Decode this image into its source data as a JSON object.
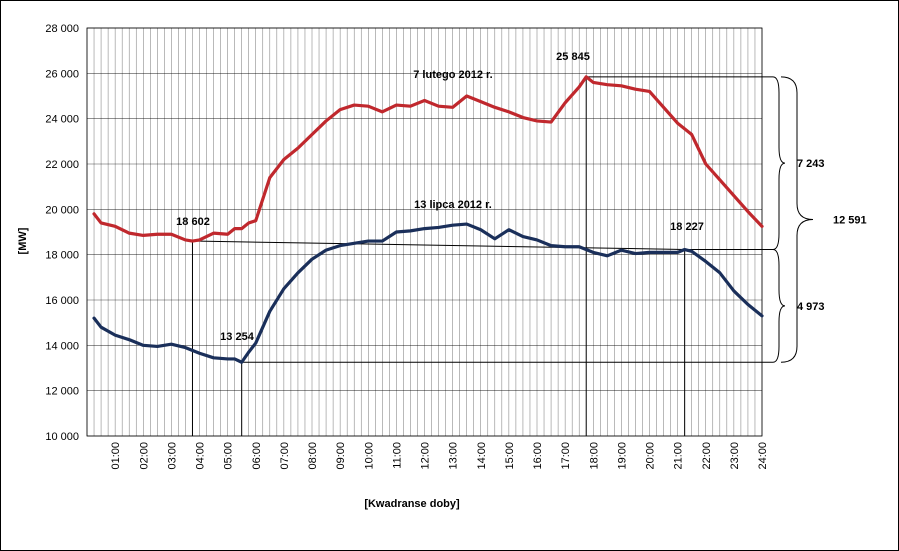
{
  "chart_data": {
    "type": "line",
    "xlabel": "[Kwadranse doby]",
    "ylabel": "[MW]",
    "ylim": [
      10000,
      28000
    ],
    "yticks": [
      "10 000",
      "12 000",
      "14 000",
      "16 000",
      "18 000",
      "20 000",
      "22 000",
      "24 000",
      "26 000",
      "28 000"
    ],
    "xtick_labels": [
      "01:00",
      "02:00",
      "03:00",
      "04:00",
      "05:00",
      "06:00",
      "07:00",
      "08:00",
      "09:00",
      "10:00",
      "11:00",
      "12:00",
      "13:00",
      "14:00",
      "15:00",
      "16:00",
      "17:00",
      "18:00",
      "19:00",
      "20:00",
      "21:00",
      "22:00",
      "23:00",
      "24:00"
    ],
    "grid": true,
    "colors": {
      "winter": "#c0282d",
      "summer": "#1a2f5a"
    },
    "series": [
      {
        "name": "7 lutego 2012 r.",
        "x": [
          0.25,
          0.5,
          1,
          1.5,
          2,
          2.5,
          3,
          3.5,
          3.75,
          4,
          4.5,
          5,
          5.25,
          5.5,
          5.75,
          6,
          6.5,
          7,
          7.5,
          8,
          8.5,
          9,
          9.5,
          10,
          10.5,
          11,
          11.5,
          12,
          12.5,
          13,
          13.5,
          14,
          14.5,
          15,
          15.5,
          16,
          16.5,
          17,
          17.5,
          17.75,
          18,
          18.5,
          19,
          19.5,
          20,
          20.5,
          21,
          21.5,
          22,
          22.5,
          23,
          23.5,
          24
        ],
        "values": [
          19800,
          19400,
          19250,
          18950,
          18850,
          18900,
          18900,
          18650,
          18602,
          18650,
          18950,
          18900,
          19150,
          19150,
          19400,
          19500,
          21400,
          22200,
          22700,
          23300,
          23900,
          24400,
          24600,
          24550,
          24300,
          24600,
          24550,
          24800,
          24550,
          24500,
          25000,
          24750,
          24500,
          24300,
          24050,
          23900,
          23850,
          24700,
          25400,
          25845,
          25600,
          25500,
          25450,
          25300,
          25200,
          24500,
          23800,
          23300,
          22000,
          21300,
          20600,
          19900,
          19250
        ]
      },
      {
        "name": "13 lipca 2012 r.",
        "x": [
          0.25,
          0.5,
          1,
          1.5,
          2,
          2.5,
          3,
          3.5,
          4,
          4.5,
          5,
          5.25,
          5.5,
          5.75,
          6,
          6.5,
          7,
          7.5,
          8,
          8.5,
          9,
          9.5,
          10,
          10.5,
          11,
          11.5,
          12,
          12.5,
          13,
          13.5,
          14,
          14.5,
          15,
          15.5,
          16,
          16.5,
          17,
          17.5,
          18,
          18.5,
          19,
          19.5,
          20,
          20.5,
          21,
          21.25,
          21.5,
          22,
          22.5,
          23,
          23.5,
          24
        ],
        "values": [
          15200,
          14800,
          14450,
          14250,
          14000,
          13950,
          14050,
          13900,
          13650,
          13450,
          13400,
          13400,
          13254,
          13700,
          14100,
          15500,
          16500,
          17200,
          17800,
          18200,
          18400,
          18500,
          18600,
          18600,
          19000,
          19050,
          19150,
          19200,
          19300,
          19350,
          19100,
          18700,
          19100,
          18800,
          18650,
          18400,
          18350,
          18350,
          18100,
          17950,
          18200,
          18050,
          18100,
          18100,
          18100,
          18227,
          18150,
          17700,
          17200,
          16400,
          15800,
          15300
        ]
      }
    ],
    "annotations": [
      {
        "text": "25 845",
        "x": 17.75,
        "y": 25845
      },
      {
        "text": "18 602",
        "x": 3.75,
        "y": 18602
      },
      {
        "text": "13 254",
        "x": 5.5,
        "y": 13254
      },
      {
        "text": "18 227",
        "x": 21.25,
        "y": 18227
      },
      {
        "text": "7 243"
      },
      {
        "text": "4 973"
      },
      {
        "text": "12 591"
      }
    ]
  }
}
